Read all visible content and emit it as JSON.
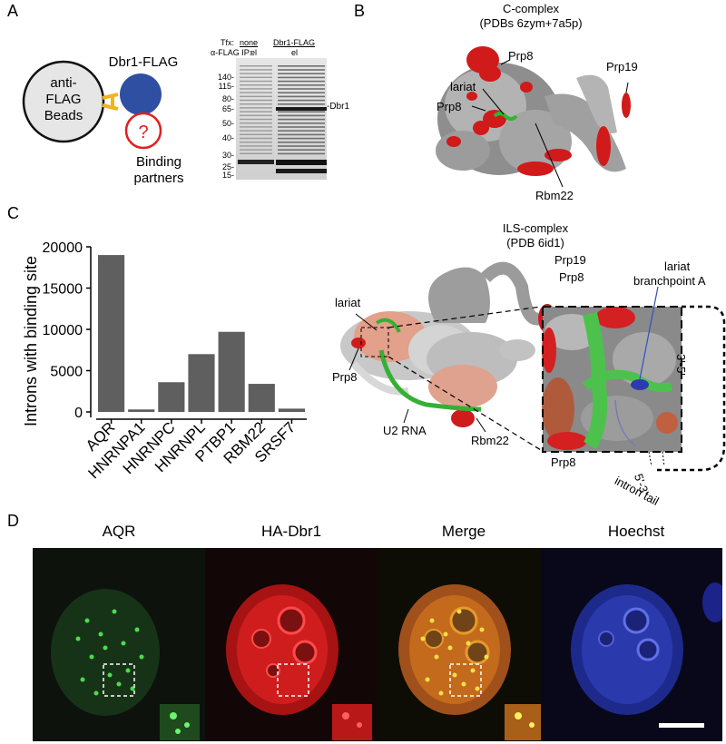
{
  "panels": {
    "A": "A",
    "B": "B",
    "C": "C",
    "D": "D"
  },
  "panel_a": {
    "bead_label": [
      "anti-",
      "FLAG",
      "Beads"
    ],
    "bait_label": "Dbr1-FLAG",
    "unknown_mark": "?",
    "partners_label": [
      "Binding",
      "partners"
    ],
    "gel": {
      "tfx_row_label": "Tfx:",
      "tfx_lane1": "none",
      "tfx_lane2": "Dbr1-FLAG",
      "ip_row_label": "α-FLAG IP:",
      "ip_lane1": "el",
      "ip_lane2": "el",
      "markers": [
        "140-",
        "115-",
        "80-",
        "65-",
        "50-",
        "40-",
        "30-",
        "25-",
        "15-"
      ],
      "band_label": "-Dbr1"
    }
  },
  "panel_b": {
    "c_complex_title": [
      "C-complex",
      "(PDBs 6zym+7a5p)"
    ],
    "c_complex_labels": {
      "prp8_top": "Prp8",
      "prp19": "Prp19",
      "lariat": "lariat",
      "prp8_left": "Prp8",
      "rbm22": "Rbm22"
    },
    "ils_title": [
      "ILS-complex",
      "(PDB 6id1)"
    ],
    "ils_labels": {
      "prp19": "Prp19",
      "lariat": "lariat",
      "prp8": "Prp8",
      "u2": "U2 RNA",
      "rbm22": "Rbm22"
    },
    "zoom_labels": {
      "prp8_top": "Prp8",
      "lariat_bp": [
        "lariat",
        "branchpoint A"
      ],
      "prp8_bottom": "Prp8",
      "three_five": "3'-5'",
      "five_three": "5'-3'",
      "intron_tail": "intron tail"
    }
  },
  "chart_data": {
    "type": "bar",
    "categories": [
      "AQR",
      "HNRNPA1",
      "HNRNPC",
      "HNRNPL",
      "PTBP1",
      "RBM22",
      "SRSF7"
    ],
    "values": [
      19000,
      300,
      3600,
      7000,
      9700,
      3400,
      400
    ],
    "ylabel": "Introns with binding site",
    "yticks": [
      0,
      5000,
      10000,
      15000,
      20000
    ],
    "ylim": [
      0,
      20000
    ],
    "bar_color": "#5f5f5f"
  },
  "panel_d": {
    "channels": [
      "AQR",
      "HA-Dbr1",
      "Merge",
      "Hoechst"
    ]
  }
}
